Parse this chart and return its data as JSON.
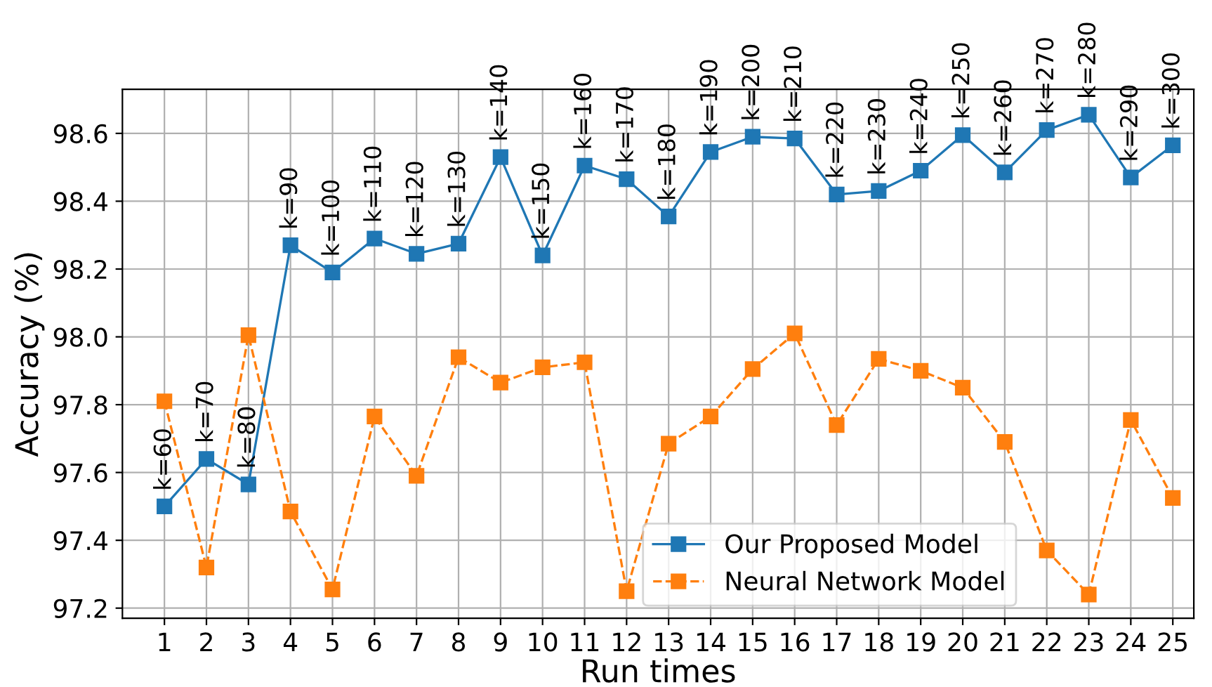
{
  "chart_data": {
    "type": "line",
    "xlabel": "Run times",
    "ylabel": "Accuracy (%)",
    "x": [
      1,
      2,
      3,
      4,
      5,
      6,
      7,
      8,
      9,
      10,
      11,
      12,
      13,
      14,
      15,
      16,
      17,
      18,
      19,
      20,
      21,
      22,
      23,
      24,
      25
    ],
    "series": [
      {
        "name": "Our Proposed Model",
        "color": "#1f77b4",
        "line_style": "solid",
        "values": [
          97.5,
          97.64,
          97.565,
          98.27,
          98.19,
          98.29,
          98.245,
          98.275,
          98.53,
          98.24,
          98.505,
          98.465,
          98.355,
          98.545,
          98.59,
          98.585,
          98.42,
          98.43,
          98.49,
          98.595,
          98.485,
          98.61,
          98.655,
          98.47,
          98.565
        ]
      },
      {
        "name": "Neural Network Model",
        "color": "#ff7f0e",
        "line_style": "dashed",
        "values": [
          97.81,
          97.32,
          98.005,
          97.485,
          97.255,
          97.765,
          97.59,
          97.94,
          97.865,
          97.91,
          97.925,
          97.25,
          97.685,
          97.765,
          97.905,
          98.01,
          97.74,
          97.935,
          97.9,
          97.85,
          97.69,
          97.37,
          97.24,
          97.755,
          97.525
        ]
      }
    ],
    "annotations": [
      {
        "text": "k=60",
        "x": 1,
        "y": 97.5
      },
      {
        "text": "k=70",
        "x": 2,
        "y": 97.64
      },
      {
        "text": "k=80",
        "x": 3,
        "y": 97.565
      },
      {
        "text": "k=90",
        "x": 4,
        "y": 98.27
      },
      {
        "text": "k=100",
        "x": 5,
        "y": 98.19
      },
      {
        "text": "k=110",
        "x": 6,
        "y": 98.29
      },
      {
        "text": "k=120",
        "x": 7,
        "y": 98.245
      },
      {
        "text": "k=130",
        "x": 8,
        "y": 98.275
      },
      {
        "text": "k=140",
        "x": 9,
        "y": 98.53
      },
      {
        "text": "k=150",
        "x": 10,
        "y": 98.24
      },
      {
        "text": "k=160",
        "x": 11,
        "y": 98.505
      },
      {
        "text": "k=170",
        "x": 12,
        "y": 98.465
      },
      {
        "text": "k=180",
        "x": 13,
        "y": 98.355
      },
      {
        "text": "k=190",
        "x": 14,
        "y": 98.545
      },
      {
        "text": "k=200",
        "x": 15,
        "y": 98.59
      },
      {
        "text": "k=210",
        "x": 16,
        "y": 98.585
      },
      {
        "text": "k=220",
        "x": 17,
        "y": 98.42
      },
      {
        "text": "k=230",
        "x": 18,
        "y": 98.43
      },
      {
        "text": "k=240",
        "x": 19,
        "y": 98.49
      },
      {
        "text": "k=250",
        "x": 20,
        "y": 98.595
      },
      {
        "text": "k=260",
        "x": 21,
        "y": 98.485
      },
      {
        "text": "k=270",
        "x": 22,
        "y": 98.61
      },
      {
        "text": "k=280",
        "x": 23,
        "y": 98.655
      },
      {
        "text": "k=290",
        "x": 24,
        "y": 98.47
      },
      {
        "text": "k=300",
        "x": 25,
        "y": 98.565
      }
    ],
    "xlim": [
      0,
      25.5
    ],
    "xticks": [
      1,
      2,
      3,
      4,
      5,
      6,
      7,
      8,
      9,
      10,
      11,
      12,
      13,
      14,
      15,
      16,
      17,
      18,
      19,
      20,
      21,
      22,
      23,
      24,
      25
    ],
    "ylim": [
      97.17,
      98.73
    ],
    "yticks": [
      {
        "value": 97.2,
        "label": "97.2"
      },
      {
        "value": 97.4,
        "label": "97.4"
      },
      {
        "value": 97.6,
        "label": "97.6"
      },
      {
        "value": 97.8,
        "label": "97.8"
      },
      {
        "value": 98.0,
        "label": "98.0"
      },
      {
        "value": 98.2,
        "label": "98.2"
      },
      {
        "value": 98.4,
        "label": "98.4"
      },
      {
        "value": 98.6,
        "label": "98.6"
      }
    ],
    "grid": true,
    "legend": "bottom",
    "marker": "square"
  }
}
